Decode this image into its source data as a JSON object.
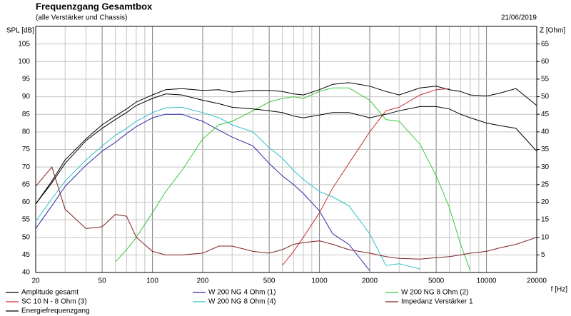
{
  "chart_data": {
    "type": "line",
    "title": "Frequenzgang Gesamtbox",
    "subtitle": "(alle Verstärker und Chassis)",
    "date": "21/06/2019",
    "ylabel": "SPL [dB]",
    "y2label": "Z [Ohm]",
    "xlabel": "f [Hz]",
    "xscale": "log",
    "grid": true,
    "x": [
      20,
      25,
      30,
      40,
      50,
      60,
      70,
      80,
      100,
      120,
      150,
      200,
      250,
      300,
      400,
      500,
      600,
      700,
      800,
      1000,
      1200,
      1500,
      2000,
      2500,
      3000,
      4000,
      5000,
      6000,
      7000,
      8000,
      10000,
      12000,
      15000,
      20000
    ],
    "xlim": [
      20,
      20000
    ],
    "xticks": [
      20,
      50,
      100,
      200,
      500,
      1000,
      2000,
      5000,
      10000,
      20000
    ],
    "xgrid": [
      30,
      40,
      60,
      70,
      80,
      90,
      300,
      400,
      600,
      700,
      800,
      900,
      3000,
      4000,
      6000,
      7000,
      8000,
      9000
    ],
    "ylim": [
      40,
      110
    ],
    "yticks": [
      40,
      45,
      50,
      55,
      60,
      65,
      70,
      75,
      80,
      85,
      90,
      95,
      100,
      105
    ],
    "y2lim": [
      0,
      70
    ],
    "y2ticks": [
      5,
      10,
      15,
      20,
      25,
      30,
      35,
      40,
      45,
      50,
      55,
      60,
      65
    ],
    "series": [
      {
        "name": "Amplitude gesamt",
        "color": "#000000",
        "values": [
          59.5,
          66,
          72,
          78,
          82,
          84.5,
          86.5,
          88.5,
          90.5,
          92,
          92.3,
          91.8,
          92,
          91.3,
          91.8,
          91.8,
          91.5,
          90.8,
          90.5,
          92,
          93.5,
          94,
          93,
          91.5,
          90.5,
          92.5,
          93,
          92,
          91.5,
          90.5,
          90.2,
          91,
          92.3,
          87.5
        ]
      },
      {
        "name": "W 200 NG 4 Ohm (1)",
        "color": "#2a2aa8",
        "values": [
          52.5,
          59,
          64.5,
          70.5,
          74.5,
          77,
          79.5,
          81.5,
          84,
          85,
          85,
          83,
          80.5,
          78.5,
          76,
          71,
          67.5,
          65,
          62.5,
          57.5,
          51,
          48,
          40.5,
          null,
          null,
          null,
          null,
          null,
          null,
          null,
          null,
          null,
          null,
          null
        ]
      },
      {
        "name": "W 200 NG 8 Ohm (2)",
        "color": "#3cc83c",
        "values": [
          null,
          null,
          null,
          null,
          null,
          43,
          46.5,
          50,
          57,
          63,
          69,
          78,
          82,
          83,
          86,
          88.5,
          89.5,
          90,
          89.5,
          91.5,
          92.5,
          92.5,
          89,
          83.5,
          83,
          76.5,
          67.5,
          58.5,
          48,
          40.5,
          null,
          null,
          null,
          null
        ]
      },
      {
        "name": "SC 10 N - 8 Ohm (3)",
        "color": "#c83232",
        "values": [
          null,
          null,
          null,
          null,
          null,
          null,
          null,
          null,
          null,
          null,
          null,
          null,
          null,
          null,
          null,
          null,
          42,
          46,
          50,
          57,
          64,
          71,
          80,
          86,
          87,
          90.5,
          92,
          92.3,
          null,
          null,
          null,
          null,
          null,
          null
        ]
      },
      {
        "name": "W 200 NG 8 Ohm (4)",
        "color": "#30c0c8",
        "values": [
          54.5,
          61,
          66,
          72,
          76,
          79,
          81,
          83,
          85.5,
          86.8,
          87,
          85.5,
          84,
          82,
          80,
          75.5,
          72.5,
          69,
          66.5,
          63,
          61.5,
          59,
          51,
          42,
          42.5,
          41,
          null,
          null,
          null,
          null,
          null,
          null,
          null,
          null
        ]
      },
      {
        "name": "Impedanz Verstärker 1",
        "color": "#802020",
        "axis": "y2",
        "values": [
          24.5,
          30,
          18,
          12.5,
          13,
          16.5,
          16,
          10,
          6,
          5,
          5,
          5.5,
          7.5,
          7.5,
          6,
          5.5,
          6.5,
          8,
          8.5,
          9,
          8,
          6.5,
          5.5,
          4.5,
          4,
          3.8,
          4.2,
          4.5,
          5,
          5.5,
          6,
          7,
          8,
          10
        ]
      },
      {
        "name": "Energiefrequenzgang",
        "color": "#000000",
        "values": [
          59.5,
          65.5,
          71,
          77.5,
          81,
          83.5,
          85.5,
          87.5,
          89.5,
          90.8,
          90.5,
          89,
          88,
          87,
          86.5,
          86,
          85.5,
          84.5,
          84,
          84.8,
          85.5,
          85.5,
          84,
          85,
          86,
          87.2,
          87.2,
          86.5,
          85,
          84,
          82.5,
          81.8,
          81,
          74.5
        ]
      }
    ]
  }
}
